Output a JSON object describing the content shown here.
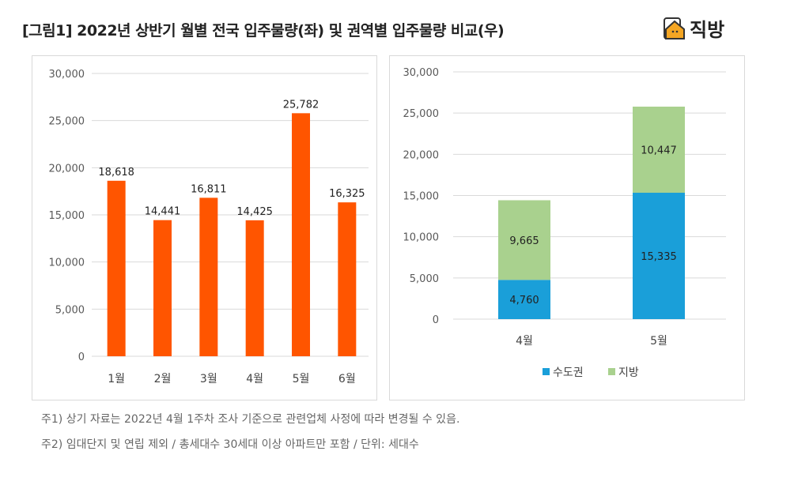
{
  "title": "[그림1] 2022년 상반기 월별 전국 입주물량(좌) 및 권역별 입주물량 비교(우)",
  "logo": {
    "text": "직방",
    "icon": "house-icon",
    "color": "#F5A623"
  },
  "notes": [
    "주1) 상기 자료는 2022년 4월 1주차 조사 기준으로 관련업체 사정에 따라 변경될 수 있음.",
    "주2) 임대단지 및 연립 제외 / 총세대수 30세대 이상 아파트만 포함 / 단위: 세대수"
  ],
  "chart_data": [
    {
      "type": "bar",
      "categories": [
        "1월",
        "2월",
        "3월",
        "4월",
        "5월",
        "6월"
      ],
      "values": [
        18618,
        14441,
        16811,
        14425,
        25782,
        16325
      ],
      "data_labels": [
        "18,618",
        "14,441",
        "16,811",
        "14,425",
        "25,782",
        "16,325"
      ],
      "ylim": [
        0,
        30000
      ],
      "yticks": [
        "0",
        "5,000",
        "10,000",
        "15,000",
        "20,000",
        "25,000",
        "30,000"
      ],
      "grid": true,
      "color": "#FF5500"
    },
    {
      "type": "stacked-bar",
      "categories": [
        "4월",
        "5월"
      ],
      "series": [
        {
          "name": "수도권",
          "values": [
            4760,
            15335
          ],
          "data_labels": [
            "4,760",
            "15,335"
          ],
          "color": "#1A9FD9"
        },
        {
          "name": "지방",
          "values": [
            9665,
            10447
          ],
          "data_labels": [
            "9,665",
            "10,447"
          ],
          "color": "#A9D18E"
        }
      ],
      "ylim": [
        0,
        30000
      ],
      "yticks": [
        "0",
        "5,000",
        "10,000",
        "15,000",
        "20,000",
        "25,000",
        "30,000"
      ],
      "grid": true,
      "legend": "bottom"
    }
  ]
}
